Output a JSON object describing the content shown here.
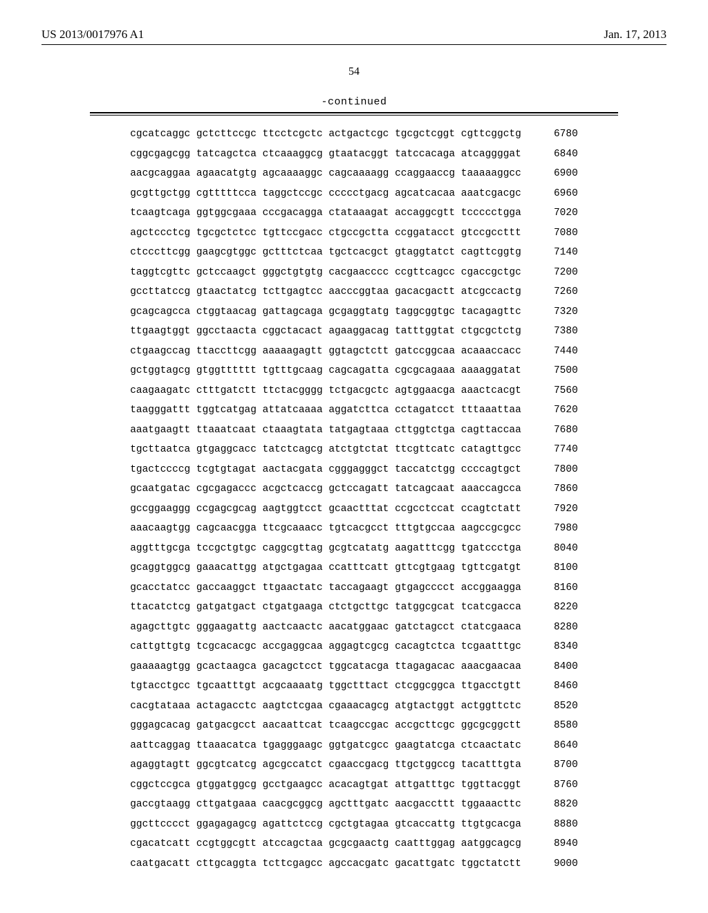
{
  "header": {
    "patent_id": "US 2013/0017976 A1",
    "pub_date": "Jan. 17, 2013"
  },
  "page_number": "54",
  "continued_label": "-continued",
  "sequence": {
    "font_family": "Courier New",
    "font_size_pt": 11,
    "text_color": "#000000",
    "background_color": "#ffffff",
    "lines": [
      {
        "groups": [
          "cgcatcaggc",
          "gctcttccgc",
          "ttcctcgctc",
          "actgactcgc",
          "tgcgctcggt",
          "cgttcggctg"
        ],
        "pos": 6780
      },
      {
        "groups": [
          "cggcgagcgg",
          "tatcagctca",
          "ctcaaaggcg",
          "gtaatacggt",
          "tatccacaga",
          "atcaggggat"
        ],
        "pos": 6840
      },
      {
        "groups": [
          "aacgcaggaa",
          "agaacatgtg",
          "agcaaaaggc",
          "cagcaaaagg",
          "ccaggaaccg",
          "taaaaaggcc"
        ],
        "pos": 6900
      },
      {
        "groups": [
          "gcgttgctgg",
          "cgtttttcca",
          "taggctccgc",
          "ccccctgacg",
          "agcatcacaa",
          "aaatcgacgc"
        ],
        "pos": 6960
      },
      {
        "groups": [
          "tcaagtcaga",
          "ggtggcgaaa",
          "cccgacagga",
          "ctataaagat",
          "accaggcgtt",
          "tccccctgga"
        ],
        "pos": 7020
      },
      {
        "groups": [
          "agctccctcg",
          "tgcgctctcc",
          "tgttccgacc",
          "ctgccgctta",
          "ccggatacct",
          "gtccgccttt"
        ],
        "pos": 7080
      },
      {
        "groups": [
          "ctcccttcgg",
          "gaagcgtggc",
          "gctttctcaa",
          "tgctcacgct",
          "gtaggtatct",
          "cagttcggtg"
        ],
        "pos": 7140
      },
      {
        "groups": [
          "taggtcgttc",
          "gctccaagct",
          "gggctgtgtg",
          "cacgaacccc",
          "ccgttcagcc",
          "cgaccgctgc"
        ],
        "pos": 7200
      },
      {
        "groups": [
          "gccttatccg",
          "gtaactatcg",
          "tcttgagtcc",
          "aacccggtaa",
          "gacacgactt",
          "atcgccactg"
        ],
        "pos": 7260
      },
      {
        "groups": [
          "gcagcagcca",
          "ctggtaacag",
          "gattagcaga",
          "gcgaggtatg",
          "taggcggtgc",
          "tacagagttc"
        ],
        "pos": 7320
      },
      {
        "groups": [
          "ttgaagtggt",
          "ggcctaacta",
          "cggctacact",
          "agaaggacag",
          "tatttggtat",
          "ctgcgctctg"
        ],
        "pos": 7380
      },
      {
        "groups": [
          "ctgaagccag",
          "ttaccttcgg",
          "aaaaagagtt",
          "ggtagctctt",
          "gatccggcaa",
          "acaaaccacc"
        ],
        "pos": 7440
      },
      {
        "groups": [
          "gctggtagcg",
          "gtggtttttt",
          "tgtttgcaag",
          "cagcagatta",
          "cgcgcagaaa",
          "aaaaggatat"
        ],
        "pos": 7500
      },
      {
        "groups": [
          "caagaagatc",
          "ctttgatctt",
          "ttctacgggg",
          "tctgacgctc",
          "agtggaacga",
          "aaactcacgt"
        ],
        "pos": 7560
      },
      {
        "groups": [
          "taagggattt",
          "tggtcatgag",
          "attatcaaaa",
          "aggatcttca",
          "cctagatcct",
          "tttaaattaa"
        ],
        "pos": 7620
      },
      {
        "groups": [
          "aaatgaagtt",
          "ttaaatcaat",
          "ctaaagtata",
          "tatgagtaaa",
          "cttggtctga",
          "cagttaccaa"
        ],
        "pos": 7680
      },
      {
        "groups": [
          "tgcttaatca",
          "gtgaggcacc",
          "tatctcagcg",
          "atctgtctat",
          "ttcgttcatc",
          "catagttgcc"
        ],
        "pos": 7740
      },
      {
        "groups": [
          "tgactccccg",
          "tcgtgtagat",
          "aactacgata",
          "cgggagggct",
          "taccatctgg",
          "ccccagtgct"
        ],
        "pos": 7800
      },
      {
        "groups": [
          "gcaatgatac",
          "cgcgagaccc",
          "acgctcaccg",
          "gctccagatt",
          "tatcagcaat",
          "aaaccagcca"
        ],
        "pos": 7860
      },
      {
        "groups": [
          "gccggaaggg",
          "ccgagcgcag",
          "aagtggtcct",
          "gcaactttat",
          "ccgcctccat",
          "ccagtctatt"
        ],
        "pos": 7920
      },
      {
        "groups": [
          "aaacaagtgg",
          "cagcaacgga",
          "ttcgcaaacc",
          "tgtcacgcct",
          "tttgtgccaa",
          "aagccgcgcc"
        ],
        "pos": 7980
      },
      {
        "groups": [
          "aggtttgcga",
          "tccgctgtgc",
          "caggcgttag",
          "gcgtcatatg",
          "aagatttcgg",
          "tgatccctga"
        ],
        "pos": 8040
      },
      {
        "groups": [
          "gcaggtggcg",
          "gaaacattgg",
          "atgctgagaa",
          "ccatttcatt",
          "gttcgtgaag",
          "tgttcgatgt"
        ],
        "pos": 8100
      },
      {
        "groups": [
          "gcacctatcc",
          "gaccaaggct",
          "ttgaactatc",
          "taccagaagt",
          "gtgagcccct",
          "accggaagga"
        ],
        "pos": 8160
      },
      {
        "groups": [
          "ttacatctcg",
          "gatgatgact",
          "ctgatgaaga",
          "ctctgcttgc",
          "tatggcgcat",
          "tcatcgacca"
        ],
        "pos": 8220
      },
      {
        "groups": [
          "agagcttgtc",
          "gggaagattg",
          "aactcaactc",
          "aacatggaac",
          "gatctagcct",
          "ctatcgaaca"
        ],
        "pos": 8280
      },
      {
        "groups": [
          "cattgttgtg",
          "tcgcacacgc",
          "accgaggcaa",
          "aggagtcgcg",
          "cacagtctca",
          "tcgaatttgc"
        ],
        "pos": 8340
      },
      {
        "groups": [
          "gaaaaagtgg",
          "gcactaagca",
          "gacagctcct",
          "tggcatacga",
          "ttagagacac",
          "aaacgaacaa"
        ],
        "pos": 8400
      },
      {
        "groups": [
          "tgtacctgcc",
          "tgcaatttgt",
          "acgcaaaatg",
          "tggctttact",
          "ctcggcggca",
          "ttgacctgtt"
        ],
        "pos": 8460
      },
      {
        "groups": [
          "cacgtataaa",
          "actagacctc",
          "aagtctcgaa",
          "cgaaacagcg",
          "atgtactggt",
          "actggttctc"
        ],
        "pos": 8520
      },
      {
        "groups": [
          "gggagcacag",
          "gatgacgcct",
          "aacaattcat",
          "tcaagccgac",
          "accgcttcgc",
          "ggcgcggctt"
        ],
        "pos": 8580
      },
      {
        "groups": [
          "aattcaggag",
          "ttaaacatca",
          "tgagggaagc",
          "ggtgatcgcc",
          "gaagtatcga",
          "ctcaactatc"
        ],
        "pos": 8640
      },
      {
        "groups": [
          "agaggtagtt",
          "ggcgtcatcg",
          "agcgccatct",
          "cgaaccgacg",
          "ttgctggccg",
          "tacatttgta"
        ],
        "pos": 8700
      },
      {
        "groups": [
          "cggctccgca",
          "gtggatggcg",
          "gcctgaagcc",
          "acacagtgat",
          "attgatttgc",
          "tggttacggt"
        ],
        "pos": 8760
      },
      {
        "groups": [
          "gaccgtaagg",
          "cttgatgaaa",
          "caacgcggcg",
          "agctttgatc",
          "aacgaccttt",
          "tggaaacttc"
        ],
        "pos": 8820
      },
      {
        "groups": [
          "ggcttcccct",
          "ggagagagcg",
          "agattctccg",
          "cgctgtagaa",
          "gtcaccattg",
          "ttgtgcacga"
        ],
        "pos": 8880
      },
      {
        "groups": [
          "cgacatcatt",
          "ccgtggcgtt",
          "atccagctaa",
          "gcgcgaactg",
          "caatttggag",
          "aatggcagcg"
        ],
        "pos": 8940
      },
      {
        "groups": [
          "caatgacatt",
          "cttgcaggta",
          "tcttcgagcc",
          "agccacgatc",
          "gacattgatc",
          "tggctatctt"
        ],
        "pos": 9000
      }
    ]
  }
}
